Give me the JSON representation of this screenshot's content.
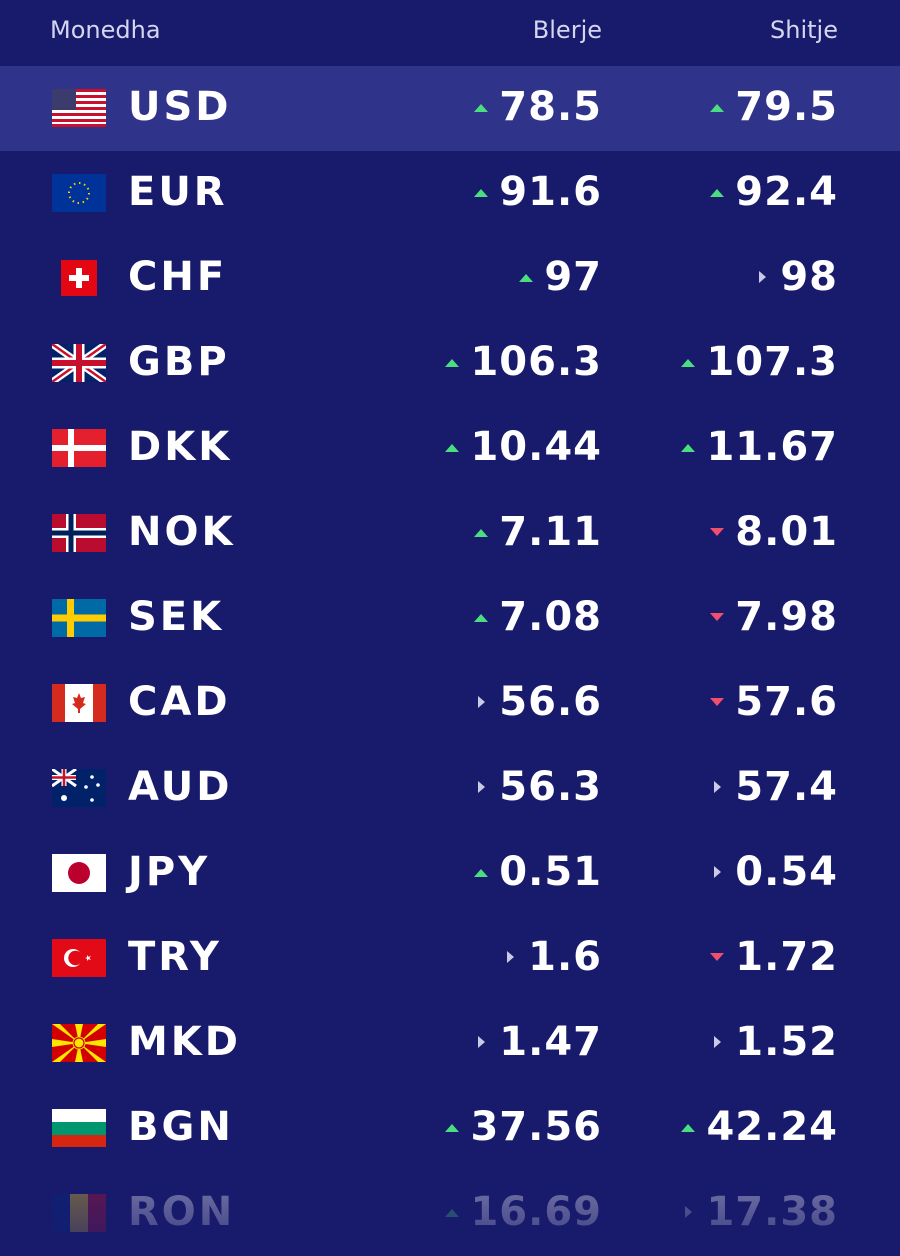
{
  "header": {
    "currency": "Monedha",
    "buy": "Blerje",
    "sell": "Shitje"
  },
  "rows": [
    {
      "code": "USD",
      "buy": 78.5,
      "buy_trend": "up",
      "sell": 79.5,
      "sell_trend": "up"
    },
    {
      "code": "EUR",
      "buy": 91.6,
      "buy_trend": "up",
      "sell": 92.4,
      "sell_trend": "up"
    },
    {
      "code": "CHF",
      "buy": 97,
      "buy_trend": "up",
      "sell": 98,
      "sell_trend": "flat"
    },
    {
      "code": "GBP",
      "buy": 106.3,
      "buy_trend": "up",
      "sell": 107.3,
      "sell_trend": "up"
    },
    {
      "code": "DKK",
      "buy": 10.44,
      "buy_trend": "up",
      "sell": 11.67,
      "sell_trend": "up"
    },
    {
      "code": "NOK",
      "buy": 7.11,
      "buy_trend": "up",
      "sell": 8.01,
      "sell_trend": "down"
    },
    {
      "code": "SEK",
      "buy": 7.08,
      "buy_trend": "up",
      "sell": 7.98,
      "sell_trend": "down"
    },
    {
      "code": "CAD",
      "buy": 56.6,
      "buy_trend": "flat",
      "sell": 57.6,
      "sell_trend": "down"
    },
    {
      "code": "AUD",
      "buy": 56.3,
      "buy_trend": "flat",
      "sell": 57.4,
      "sell_trend": "flat"
    },
    {
      "code": "JPY",
      "buy": 0.51,
      "buy_trend": "up",
      "sell": 0.54,
      "sell_trend": "flat"
    },
    {
      "code": "TRY",
      "buy": 1.6,
      "buy_trend": "flat",
      "sell": 1.72,
      "sell_trend": "down"
    },
    {
      "code": "MKD",
      "buy": 1.47,
      "buy_trend": "flat",
      "sell": 1.52,
      "sell_trend": "flat"
    },
    {
      "code": "BGN",
      "buy": 37.56,
      "buy_trend": "up",
      "sell": 42.24,
      "sell_trend": "up"
    },
    {
      "code": "RON",
      "buy": 16.69,
      "buy_trend": "up",
      "sell": 17.38,
      "sell_trend": "flat"
    }
  ]
}
